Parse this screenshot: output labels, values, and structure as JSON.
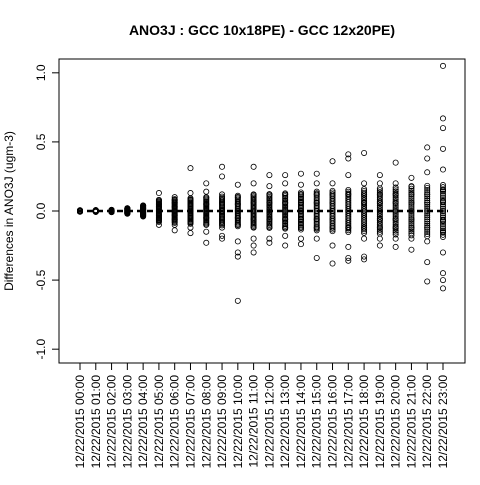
{
  "chart_data": {
    "type": "scatter",
    "title": "ANO3J : GCC 10x18PE) - GCC 12x20PE)",
    "xlabel": "",
    "ylabel": "Differences in ANO3J (ugm-3)",
    "ylim": [
      -1.1,
      1.1
    ],
    "y_ticks": [
      {
        "value": 1.0,
        "label": "1.0"
      },
      {
        "value": 0.5,
        "label": "0.5"
      },
      {
        "value": 0.0,
        "label": "0.0"
      },
      {
        "value": -0.5,
        "label": "-0.5"
      },
      {
        "value": -1.0,
        "label": "-1.0"
      }
    ],
    "categories": [
      "12/22/2015 00:00",
      "12/22/2015 01:00",
      "12/22/2015 02:00",
      "12/22/2015 03:00",
      "12/22/2015 04:00",
      "12/22/2015 05:00",
      "12/22/2015 06:00",
      "12/22/2015 07:00",
      "12/22/2015 08:00",
      "12/22/2015 09:00",
      "12/22/2015 10:00",
      "12/22/2015 11:00",
      "12/22/2015 12:00",
      "12/22/2015 13:00",
      "12/22/2015 14:00",
      "12/22/2015 15:00",
      "12/22/2015 16:00",
      "12/22/2015 17:00",
      "12/22/2015 18:00",
      "12/22/2015 19:00",
      "12/22/2015 20:00",
      "12/22/2015 21:00",
      "12/22/2015 22:00",
      "12/22/2015 23:00"
    ],
    "series": [
      {
        "values": [
          [
            0.0,
            0.003,
            -0.003,
            0.005,
            -0.005
          ],
          [
            0.0,
            0.004,
            -0.004,
            0.006,
            -0.006
          ],
          [
            0.0,
            0.005,
            -0.005,
            0.008,
            -0.008
          ],
          [
            0.0,
            0.01,
            -0.01,
            0.02,
            -0.015
          ],
          [
            0.0,
            0.02,
            -0.02,
            0.04,
            -0.03,
            0.01,
            -0.01
          ],
          [
            0.0,
            0.05,
            -0.05,
            0.08,
            -0.06,
            0.13,
            -0.1,
            0.03,
            -0.03
          ],
          [
            0.0,
            0.06,
            -0.06,
            0.1,
            -0.1,
            0.08,
            -0.14,
            0.03,
            -0.03
          ],
          [
            0.0,
            0.08,
            -0.08,
            0.13,
            -0.12,
            0.31,
            -0.16,
            0.05,
            -0.05
          ],
          [
            0.0,
            0.1,
            -0.1,
            0.14,
            -0.15,
            0.2,
            -0.23,
            0.05,
            -0.05
          ],
          [
            0.0,
            0.12,
            -0.12,
            0.25,
            -0.18,
            0.32,
            -0.2,
            0.06,
            -0.06
          ],
          [
            0.0,
            0.1,
            -0.1,
            0.19,
            -0.22,
            -0.3,
            -0.33,
            -0.65,
            0.05,
            -0.05
          ],
          [
            0.0,
            0.12,
            -0.12,
            0.2,
            -0.2,
            0.32,
            -0.3,
            -0.25,
            0.06,
            -0.06
          ],
          [
            0.0,
            0.12,
            -0.12,
            0.18,
            -0.2,
            0.26,
            -0.23,
            0.06,
            -0.06
          ],
          [
            0.0,
            0.12,
            -0.12,
            0.2,
            -0.18,
            0.26,
            -0.25,
            0.06,
            -0.06
          ],
          [
            0.0,
            0.12,
            -0.12,
            0.19,
            -0.2,
            0.27,
            -0.24,
            0.06,
            -0.06
          ],
          [
            0.0,
            0.12,
            -0.12,
            0.2,
            -0.2,
            0.27,
            -0.34,
            0.06,
            -0.06
          ],
          [
            0.0,
            0.12,
            -0.12,
            0.2,
            -0.25,
            0.36,
            -0.38,
            0.06,
            -0.06
          ],
          [
            0.0,
            0.12,
            -0.12,
            0.26,
            -0.26,
            0.41,
            -0.36,
            0.38,
            -0.34
          ],
          [
            0.0,
            0.12,
            -0.12,
            0.2,
            -0.2,
            0.42,
            -0.33,
            -0.35,
            0.06
          ],
          [
            0.0,
            0.12,
            -0.12,
            0.2,
            -0.2,
            0.26,
            -0.25,
            0.06,
            -0.06
          ],
          [
            0.0,
            0.12,
            -0.12,
            0.2,
            -0.2,
            0.35,
            -0.26,
            0.06,
            -0.06
          ],
          [
            0.0,
            0.12,
            -0.12,
            0.24,
            -0.2,
            -0.28,
            0.18,
            0.06,
            -0.06
          ],
          [
            0.0,
            0.12,
            -0.12,
            0.28,
            -0.22,
            0.46,
            -0.37,
            -0.51,
            0.38,
            0.06
          ],
          [
            0.0,
            0.15,
            -0.15,
            0.3,
            -0.3,
            0.45,
            -0.45,
            0.6,
            -0.56,
            0.67,
            -0.5,
            1.05,
            0.07,
            -0.07
          ]
        ]
      }
    ],
    "grid": false,
    "legend": "none"
  }
}
